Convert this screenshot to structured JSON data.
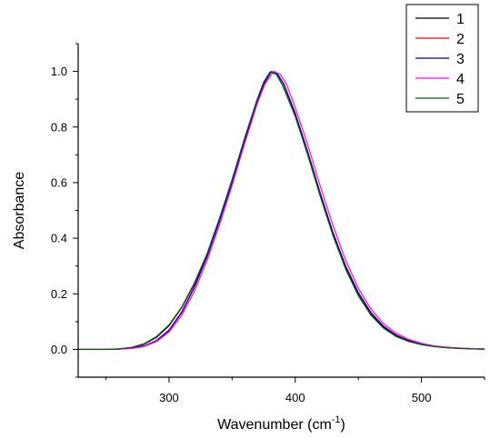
{
  "chart_data": {
    "type": "line",
    "xlabel_main": "Wavenumber (cm",
    "xlabel_sup": "-1",
    "xlabel_close": ")",
    "ylabel": "Absorbance",
    "xlim": [
      228,
      550
    ],
    "ylim": [
      -0.1,
      1.1
    ],
    "xticks": [
      300,
      400,
      500
    ],
    "xtick_labels": [
      "300",
      "400",
      "500"
    ],
    "yticks": [
      0.0,
      0.2,
      0.4,
      0.6,
      0.8,
      1.0
    ],
    "ytick_labels": [
      "0.0",
      "0.2",
      "0.4",
      "0.6",
      "0.8",
      "1.0"
    ],
    "legend_position": "top-right",
    "series": [
      {
        "name": "1",
        "color": "#000000",
        "points": [
          [
            228,
            0.0
          ],
          [
            250,
            0.0
          ],
          [
            260,
            0.002
          ],
          [
            270,
            0.006
          ],
          [
            280,
            0.018
          ],
          [
            290,
            0.043
          ],
          [
            300,
            0.085
          ],
          [
            310,
            0.15
          ],
          [
            320,
            0.235
          ],
          [
            330,
            0.34
          ],
          [
            340,
            0.47
          ],
          [
            350,
            0.61
          ],
          [
            360,
            0.76
          ],
          [
            370,
            0.9
          ],
          [
            375,
            0.96
          ],
          [
            380,
            0.998
          ],
          [
            385,
            0.99
          ],
          [
            390,
            0.95
          ],
          [
            400,
            0.84
          ],
          [
            410,
            0.7
          ],
          [
            420,
            0.55
          ],
          [
            430,
            0.41
          ],
          [
            440,
            0.29
          ],
          [
            450,
            0.195
          ],
          [
            460,
            0.125
          ],
          [
            470,
            0.078
          ],
          [
            480,
            0.048
          ],
          [
            490,
            0.029
          ],
          [
            500,
            0.018
          ],
          [
            510,
            0.011
          ],
          [
            520,
            0.006
          ],
          [
            530,
            0.004
          ],
          [
            540,
            0.002
          ],
          [
            550,
            0.001
          ]
        ]
      },
      {
        "name": "2",
        "color": "#ff0000",
        "points": [
          [
            228,
            0.0
          ],
          [
            250,
            0.0
          ],
          [
            260,
            0.001
          ],
          [
            270,
            0.004
          ],
          [
            280,
            0.012
          ],
          [
            290,
            0.032
          ],
          [
            300,
            0.07
          ],
          [
            310,
            0.135
          ],
          [
            320,
            0.225
          ],
          [
            330,
            0.335
          ],
          [
            340,
            0.465
          ],
          [
            350,
            0.605
          ],
          [
            360,
            0.755
          ],
          [
            370,
            0.895
          ],
          [
            375,
            0.955
          ],
          [
            381,
            1.0
          ],
          [
            386,
            0.99
          ],
          [
            391,
            0.955
          ],
          [
            400,
            0.85
          ],
          [
            410,
            0.71
          ],
          [
            420,
            0.56
          ],
          [
            430,
            0.42
          ],
          [
            440,
            0.3
          ],
          [
            450,
            0.205
          ],
          [
            460,
            0.133
          ],
          [
            470,
            0.084
          ],
          [
            480,
            0.052
          ],
          [
            490,
            0.032
          ],
          [
            500,
            0.02
          ],
          [
            510,
            0.012
          ],
          [
            520,
            0.007
          ],
          [
            530,
            0.004
          ],
          [
            540,
            0.002
          ],
          [
            550,
            0.001
          ]
        ]
      },
      {
        "name": "3",
        "color": "#0000aa",
        "points": [
          [
            228,
            0.0
          ],
          [
            250,
            0.0
          ],
          [
            260,
            0.001
          ],
          [
            270,
            0.004
          ],
          [
            280,
            0.012
          ],
          [
            290,
            0.031
          ],
          [
            300,
            0.068
          ],
          [
            310,
            0.132
          ],
          [
            320,
            0.222
          ],
          [
            330,
            0.332
          ],
          [
            340,
            0.462
          ],
          [
            350,
            0.602
          ],
          [
            360,
            0.752
          ],
          [
            370,
            0.893
          ],
          [
            375,
            0.953
          ],
          [
            381,
            0.999
          ],
          [
            386,
            0.99
          ],
          [
            391,
            0.953
          ],
          [
            400,
            0.848
          ],
          [
            410,
            0.708
          ],
          [
            420,
            0.558
          ],
          [
            430,
            0.418
          ],
          [
            440,
            0.298
          ],
          [
            450,
            0.203
          ],
          [
            460,
            0.131
          ],
          [
            470,
            0.082
          ],
          [
            480,
            0.05
          ],
          [
            490,
            0.031
          ],
          [
            500,
            0.019
          ],
          [
            510,
            0.011
          ],
          [
            520,
            0.006
          ],
          [
            530,
            0.004
          ],
          [
            540,
            0.002
          ],
          [
            550,
            0.001
          ]
        ]
      },
      {
        "name": "4",
        "color": "#ff00ff",
        "points": [
          [
            228,
            0.0
          ],
          [
            250,
            0.0
          ],
          [
            260,
            0.001
          ],
          [
            270,
            0.003
          ],
          [
            280,
            0.01
          ],
          [
            290,
            0.028
          ],
          [
            300,
            0.062
          ],
          [
            310,
            0.122
          ],
          [
            320,
            0.208
          ],
          [
            330,
            0.318
          ],
          [
            340,
            0.448
          ],
          [
            350,
            0.59
          ],
          [
            360,
            0.742
          ],
          [
            370,
            0.885
          ],
          [
            376,
            0.955
          ],
          [
            383,
            1.0
          ],
          [
            388,
            0.99
          ],
          [
            393,
            0.955
          ],
          [
            400,
            0.87
          ],
          [
            410,
            0.735
          ],
          [
            420,
            0.585
          ],
          [
            430,
            0.445
          ],
          [
            440,
            0.32
          ],
          [
            450,
            0.22
          ],
          [
            460,
            0.145
          ],
          [
            470,
            0.092
          ],
          [
            480,
            0.058
          ],
          [
            490,
            0.036
          ],
          [
            500,
            0.022
          ],
          [
            510,
            0.013
          ],
          [
            520,
            0.008
          ],
          [
            530,
            0.005
          ],
          [
            540,
            0.003
          ],
          [
            550,
            0.002
          ]
        ]
      },
      {
        "name": "5",
        "color": "#006400",
        "points": [
          [
            228,
            0.0
          ],
          [
            250,
            0.0
          ],
          [
            260,
            0.002
          ],
          [
            270,
            0.007
          ],
          [
            280,
            0.02
          ],
          [
            290,
            0.046
          ],
          [
            300,
            0.088
          ],
          [
            310,
            0.152
          ],
          [
            320,
            0.238
          ],
          [
            330,
            0.343
          ],
          [
            340,
            0.472
          ],
          [
            350,
            0.612
          ],
          [
            360,
            0.762
          ],
          [
            370,
            0.902
          ],
          [
            375,
            0.962
          ],
          [
            380,
            0.998
          ],
          [
            385,
            0.99
          ],
          [
            390,
            0.95
          ],
          [
            400,
            0.838
          ],
          [
            410,
            0.698
          ],
          [
            420,
            0.548
          ],
          [
            430,
            0.408
          ],
          [
            440,
            0.288
          ],
          [
            450,
            0.193
          ],
          [
            460,
            0.123
          ],
          [
            470,
            0.076
          ],
          [
            480,
            0.046
          ],
          [
            490,
            0.028
          ],
          [
            500,
            0.017
          ],
          [
            510,
            0.01
          ],
          [
            520,
            0.006
          ],
          [
            530,
            0.003
          ],
          [
            540,
            0.002
          ],
          [
            550,
            0.001
          ]
        ]
      }
    ]
  }
}
